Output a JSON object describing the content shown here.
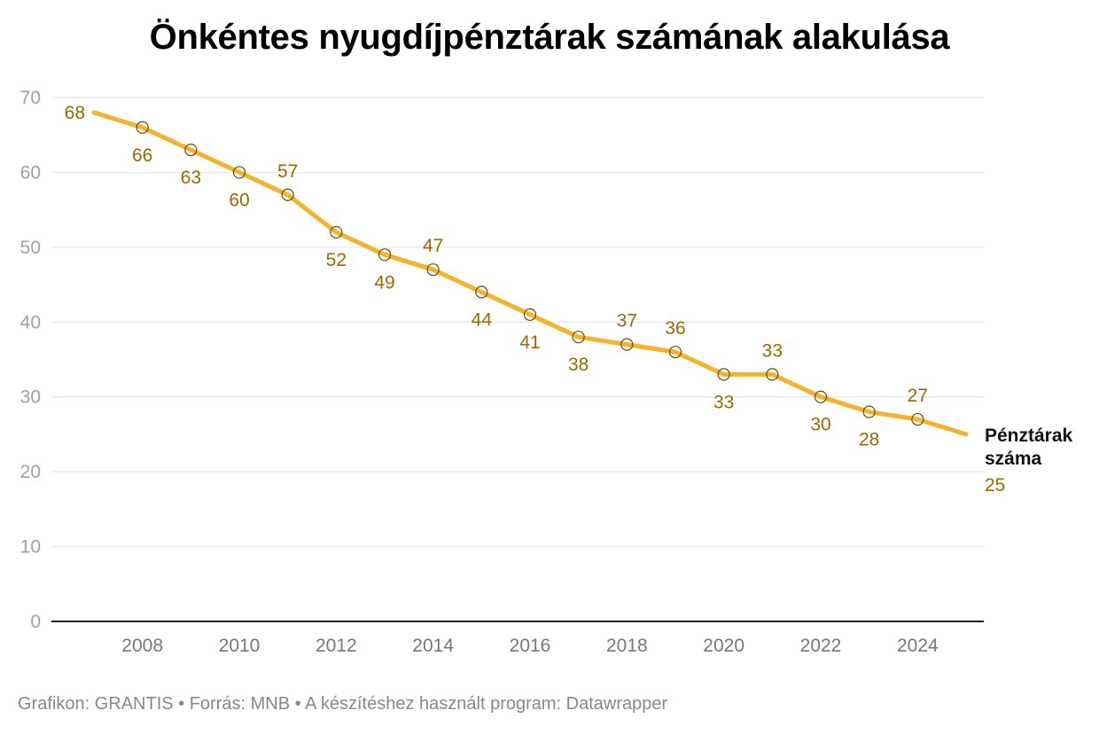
{
  "title": "Önkéntes nyugdíjpénztárak számának alakulása",
  "footer": "Grafikon: GRANTIS • Forrás: MNB • A készítéshez használt program: Datawrapper",
  "colors": {
    "line": "#f6b22d",
    "label": "#9a6a00",
    "grid": "#e2e2e2",
    "axis_text": "#a0a0a0",
    "baseline": "#222222"
  },
  "chart_data": {
    "type": "line",
    "title": "Önkéntes nyugdíjpénztárak számának alakulása",
    "xlabel": "",
    "ylabel": "",
    "x": [
      2007,
      2008,
      2009,
      2010,
      2011,
      2012,
      2013,
      2014,
      2015,
      2016,
      2017,
      2018,
      2019,
      2020,
      2021,
      2022,
      2023,
      2024,
      2025
    ],
    "x_ticks": [
      "2008",
      "2010",
      "2012",
      "2014",
      "2016",
      "2018",
      "2020",
      "2022",
      "2024"
    ],
    "y_ticks": [
      "0",
      "10",
      "20",
      "30",
      "40",
      "50",
      "60",
      "70"
    ],
    "ylim": [
      0,
      70
    ],
    "grid": true,
    "series": [
      {
        "name": "Pénztárak száma",
        "values": [
          68,
          66,
          63,
          60,
          57,
          52,
          49,
          47,
          44,
          41,
          38,
          37,
          36,
          33,
          33,
          30,
          28,
          27,
          25
        ]
      }
    ],
    "label_positions": [
      "left",
      "below",
      "below",
      "below",
      "above",
      "below",
      "below",
      "above",
      "below",
      "below",
      "below",
      "above",
      "above",
      "below",
      "above",
      "below",
      "below",
      "above",
      "end"
    ]
  }
}
